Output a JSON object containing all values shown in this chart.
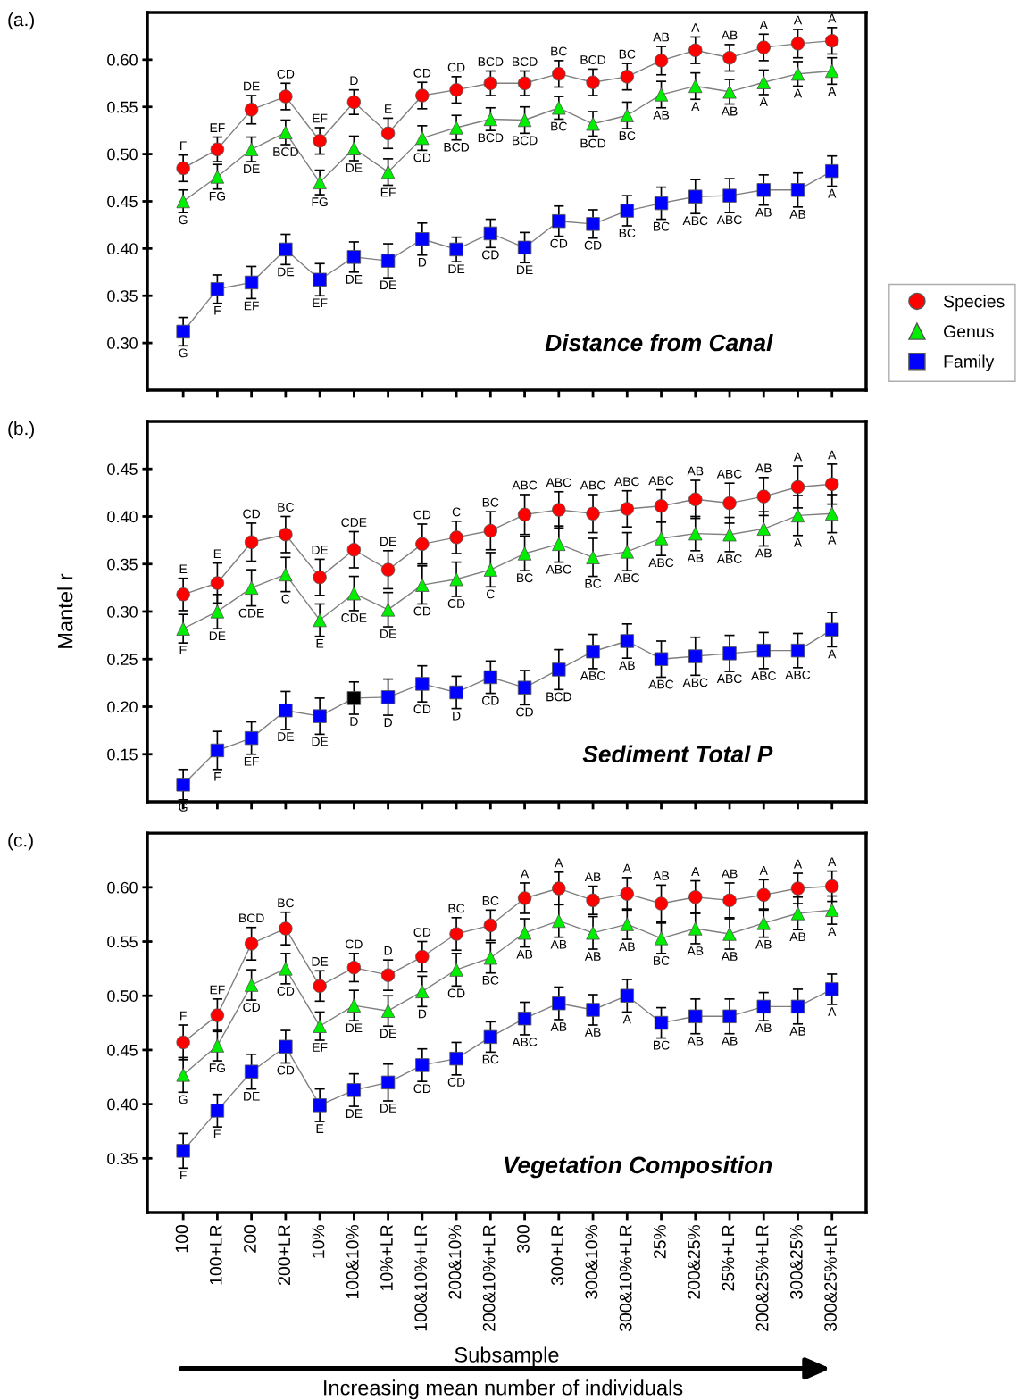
{
  "chart_data": [
    {
      "type": "line",
      "title": "Distance from Canal",
      "annotations": [
        "(a.)"
      ],
      "categories": [
        null,
        null,
        null,
        null,
        null,
        null,
        null,
        null,
        null,
        null,
        null,
        null,
        null,
        null,
        null,
        null,
        null,
        null,
        null,
        null
      ],
      "ylim": [
        0.25,
        0.65
      ],
      "yticks": [
        {
          "value": 0.3,
          "label": "0.30"
        },
        {
          "value": 0.35,
          "label": "0.35"
        },
        {
          "value": 0.4,
          "label": "0.40"
        },
        {
          "value": 0.45,
          "label": "0.45"
        },
        {
          "value": 0.5,
          "label": "0.50"
        },
        {
          "value": 0.55,
          "label": "0.55"
        },
        {
          "value": 0.6,
          "label": "0.60"
        }
      ],
      "tick_labels": "y",
      "legend": "right",
      "line_style": "solid",
      "series": [
        {
          "name": "Species",
          "color": "#ff0000",
          "marker": "circle",
          "values": [
            0.485,
            0.505,
            0.547,
            0.561,
            0.514,
            0.555,
            0.522,
            0.562,
            0.568,
            0.575,
            0.575,
            0.585,
            0.576,
            0.582,
            0.599,
            0.61,
            0.602,
            0.613,
            0.617,
            0.62
          ],
          "errors": [
            0.014,
            0.013,
            0.015,
            0.014,
            0.014,
            0.013,
            0.016,
            0.014,
            0.014,
            0.013,
            0.013,
            0.014,
            0.014,
            0.014,
            0.015,
            0.014,
            0.014,
            0.014,
            0.015,
            0.014
          ],
          "value_labels": [
            "F",
            "EF",
            "DE",
            "CD",
            "EF",
            "D",
            "E",
            "CD",
            "CD",
            "BCD",
            "BCD",
            "BC",
            "BCD",
            "BC",
            "AB",
            "A",
            "AB",
            "A",
            "A",
            "A"
          ]
        },
        {
          "name": "Genus",
          "color": "#00ee00",
          "marker": "triangle",
          "values": [
            0.45,
            0.476,
            0.505,
            0.523,
            0.47,
            0.506,
            0.481,
            0.517,
            0.528,
            0.537,
            0.536,
            0.549,
            0.532,
            0.541,
            0.563,
            0.572,
            0.566,
            0.576,
            0.585,
            0.588
          ],
          "errors": [
            0.012,
            0.013,
            0.013,
            0.013,
            0.013,
            0.013,
            0.014,
            0.013,
            0.013,
            0.012,
            0.014,
            0.012,
            0.013,
            0.014,
            0.014,
            0.014,
            0.013,
            0.013,
            0.013,
            0.014
          ],
          "value_labels": [
            "G",
            "FG",
            "DE",
            "BCD",
            "FG",
            "DE",
            "EF",
            "CD",
            "BCD",
            "BCD",
            "BCD",
            "BC",
            "BCD",
            "BC",
            "AB",
            "A",
            "AB",
            "A",
            "A",
            "A"
          ]
        },
        {
          "name": "Family",
          "color": "#0000ff",
          "marker": "square",
          "values": [
            0.312,
            0.357,
            0.364,
            0.399,
            0.367,
            0.391,
            0.387,
            0.41,
            0.399,
            0.416,
            0.401,
            0.429,
            0.426,
            0.44,
            0.448,
            0.455,
            0.456,
            0.462,
            0.462,
            0.482
          ],
          "errors": [
            0.015,
            0.015,
            0.017,
            0.016,
            0.017,
            0.016,
            0.018,
            0.017,
            0.013,
            0.015,
            0.016,
            0.016,
            0.015,
            0.016,
            0.017,
            0.018,
            0.018,
            0.016,
            0.018,
            0.016
          ],
          "value_labels": [
            "G",
            "F",
            "EF",
            "DE",
            "EF",
            "DE",
            "DE",
            "D",
            "DE",
            "CD",
            "DE",
            "CD",
            "CD",
            "BC",
            "BC",
            "ABC",
            "ABC",
            "AB",
            "AB",
            "A"
          ]
        }
      ]
    },
    {
      "type": "line",
      "title": "Sediment Total P",
      "annotations": [
        "(b.)"
      ],
      "ylabel": "Mantel r",
      "categories": [
        null,
        null,
        null,
        null,
        null,
        null,
        null,
        null,
        null,
        null,
        null,
        null,
        null,
        null,
        null,
        null,
        null,
        null,
        null,
        null
      ],
      "ylim": [
        0.1,
        0.5
      ],
      "yticks": [
        {
          "value": 0.15,
          "label": "0.15"
        },
        {
          "value": 0.2,
          "label": "0.20"
        },
        {
          "value": 0.25,
          "label": "0.25"
        },
        {
          "value": 0.3,
          "label": "0.30"
        },
        {
          "value": 0.35,
          "label": "0.35"
        },
        {
          "value": 0.4,
          "label": "0.40"
        },
        {
          "value": 0.45,
          "label": "0.45"
        }
      ],
      "tick_labels": "y",
      "line_style": "solid",
      "series": [
        {
          "color": "#ff0000",
          "marker": "circle",
          "values": [
            0.318,
            0.33,
            0.373,
            0.381,
            0.336,
            0.365,
            0.344,
            0.371,
            0.378,
            0.385,
            0.402,
            0.407,
            0.403,
            0.408,
            0.411,
            0.418,
            0.414,
            0.421,
            0.431,
            0.434
          ],
          "errors": [
            0.017,
            0.021,
            0.02,
            0.019,
            0.019,
            0.019,
            0.02,
            0.021,
            0.017,
            0.02,
            0.021,
            0.019,
            0.02,
            0.019,
            0.017,
            0.02,
            0.021,
            0.02,
            0.022,
            0.021
          ],
          "value_labels": [
            "E",
            "E",
            "CD",
            "BC",
            "DE",
            "CDE",
            "DE",
            "CD",
            "C",
            "BC",
            "ABC",
            "ABC",
            "ABC",
            "ABC",
            "ABC",
            "AB",
            "ABC",
            "AB",
            "A",
            "A"
          ]
        },
        {
          "color": "#00ee00",
          "marker": "triangle",
          "values": [
            0.282,
            0.3,
            0.325,
            0.339,
            0.291,
            0.319,
            0.302,
            0.328,
            0.334,
            0.344,
            0.361,
            0.371,
            0.357,
            0.363,
            0.377,
            0.382,
            0.381,
            0.387,
            0.401,
            0.403
          ],
          "errors": [
            0.015,
            0.018,
            0.019,
            0.018,
            0.017,
            0.018,
            0.018,
            0.02,
            0.018,
            0.018,
            0.018,
            0.019,
            0.02,
            0.02,
            0.018,
            0.018,
            0.018,
            0.018,
            0.021,
            0.02
          ],
          "value_labels": [
            "E",
            "DE",
            "CDE",
            "C",
            "E",
            "CDE",
            "DE",
            "CD",
            "CD",
            "C",
            "BC",
            "ABC",
            "BC",
            "ABC",
            "ABC",
            "AB",
            "ABC",
            "AB",
            "A",
            "A"
          ]
        },
        {
          "color": "#0000ff",
          "colors": [
            "#0000ff",
            "#0000ff",
            "#0000ff",
            "#0000ff",
            "#0000ff",
            "#000000",
            "#0000ff",
            "#0000ff",
            "#0000ff",
            "#0000ff",
            "#0000ff",
            "#0000ff",
            "#0000ff",
            "#0000ff",
            "#0000ff",
            "#0000ff",
            "#0000ff",
            "#0000ff",
            "#0000ff",
            "#0000ff"
          ],
          "marker": "square",
          "values": [
            0.118,
            0.154,
            0.167,
            0.196,
            0.19,
            0.209,
            0.21,
            0.224,
            0.215,
            0.231,
            0.22,
            0.239,
            0.258,
            0.269,
            0.25,
            0.253,
            0.256,
            0.259,
            0.259,
            0.281
          ],
          "errors": [
            0.016,
            0.02,
            0.017,
            0.02,
            0.019,
            0.017,
            0.019,
            0.019,
            0.017,
            0.017,
            0.018,
            0.021,
            0.018,
            0.018,
            0.019,
            0.02,
            0.019,
            0.019,
            0.018,
            0.018
          ],
          "value_labels": [
            "G",
            "F",
            "EF",
            "DE",
            "DE",
            "D",
            "D",
            "CD",
            "D",
            "CD",
            "CD",
            "BCD",
            "ABC",
            "AB",
            "ABC",
            "ABC",
            "ABC",
            "ABC",
            "ABC",
            "A"
          ]
        }
      ]
    },
    {
      "type": "line",
      "title": "Vegetation Composition",
      "annotations": [
        "(c.)",
        "Increasing mean number of individuals"
      ],
      "xlabel": "Subsample",
      "categories": [
        "100",
        "100+LR",
        "200",
        "200+LR",
        "10%",
        "100&10%",
        "10%+LR",
        "100&10%+LR",
        "200&10%",
        "200&10%+LR",
        "300",
        "300+LR",
        "300&10%",
        "300&10%+LR",
        "25%",
        "200&25%",
        "25%+LR",
        "200&25%+LR",
        "300&25%",
        "300&25%+LR"
      ],
      "ylim": [
        0.3,
        0.65
      ],
      "yticks": [
        {
          "value": 0.35,
          "label": "0.35"
        },
        {
          "value": 0.4,
          "label": "0.40"
        },
        {
          "value": 0.45,
          "label": "0.45"
        },
        {
          "value": 0.5,
          "label": "0.50"
        },
        {
          "value": 0.55,
          "label": "0.55"
        },
        {
          "value": 0.6,
          "label": "0.60"
        }
      ],
      "line_style": "solid",
      "series": [
        {
          "color": "#ff0000",
          "marker": "circle",
          "values": [
            0.457,
            0.482,
            0.548,
            0.562,
            0.509,
            0.526,
            0.519,
            0.536,
            0.557,
            0.565,
            0.59,
            0.599,
            0.588,
            0.594,
            0.585,
            0.591,
            0.588,
            0.593,
            0.599,
            0.601
          ],
          "errors": [
            0.016,
            0.015,
            0.015,
            0.015,
            0.014,
            0.013,
            0.014,
            0.014,
            0.015,
            0.014,
            0.014,
            0.015,
            0.013,
            0.015,
            0.017,
            0.015,
            0.016,
            0.014,
            0.014,
            0.014
          ],
          "value_labels": [
            "F",
            "EF",
            "BCD",
            "BC",
            "DE",
            "CD",
            "D",
            "CD",
            "BC",
            "BC",
            "A",
            "A",
            "AB",
            "A",
            "AB",
            "A",
            "AB",
            "A",
            "A",
            "A"
          ]
        },
        {
          "color": "#00ee00",
          "marker": "triangle",
          "values": [
            0.427,
            0.454,
            0.51,
            0.525,
            0.472,
            0.491,
            0.486,
            0.504,
            0.524,
            0.535,
            0.558,
            0.569,
            0.558,
            0.566,
            0.553,
            0.562,
            0.557,
            0.567,
            0.576,
            0.579
          ],
          "errors": [
            0.016,
            0.014,
            0.014,
            0.014,
            0.013,
            0.014,
            0.014,
            0.014,
            0.015,
            0.014,
            0.013,
            0.015,
            0.015,
            0.014,
            0.014,
            0.014,
            0.014,
            0.013,
            0.015,
            0.013
          ],
          "value_labels": [
            "G",
            "FG",
            "CD",
            "CD",
            "EF",
            "DE",
            "DE",
            "D",
            "CD",
            "BC",
            "AB",
            "AB",
            "AB",
            "AB",
            "BC",
            "AB",
            "AB",
            "AB",
            "AB",
            "A"
          ]
        },
        {
          "color": "#0000ff",
          "marker": "square",
          "values": [
            0.357,
            0.394,
            0.43,
            0.453,
            0.399,
            0.413,
            0.42,
            0.436,
            0.442,
            0.462,
            0.479,
            0.493,
            0.487,
            0.5,
            0.475,
            0.481,
            0.481,
            0.49,
            0.49,
            0.506
          ],
          "errors": [
            0.016,
            0.015,
            0.016,
            0.015,
            0.015,
            0.015,
            0.017,
            0.015,
            0.015,
            0.014,
            0.015,
            0.015,
            0.014,
            0.015,
            0.014,
            0.016,
            0.016,
            0.013,
            0.016,
            0.014
          ],
          "value_labels": [
            "F",
            "E",
            "DE",
            "CD",
            "E",
            "DE",
            "DE",
            "CD",
            "CD",
            "BC",
            "ABC",
            "AB",
            "AB",
            "A",
            "BC",
            "AB",
            "AB",
            "AB",
            "AB",
            "A"
          ]
        }
      ]
    }
  ]
}
